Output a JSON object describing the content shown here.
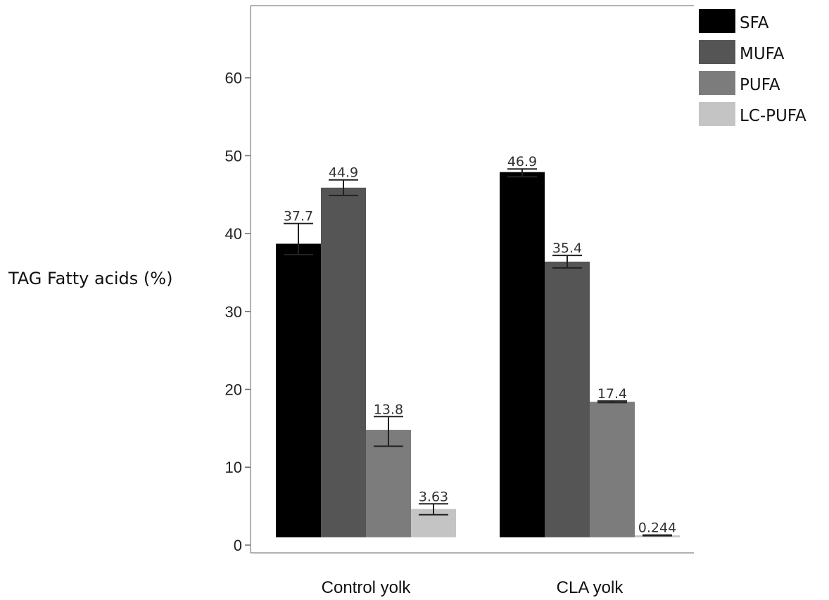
{
  "chart_data": {
    "type": "bar",
    "title": "",
    "xlabel": "",
    "ylabel": "TAG Fatty acids (%)",
    "categories": [
      "Control yolk",
      "CLA yolk"
    ],
    "series": [
      {
        "name": "SFA",
        "color": "#000000",
        "values": [
          37.7,
          46.9
        ],
        "labels": [
          "37.7",
          "46.9"
        ],
        "error": [
          [
            36.3,
            40.3
          ],
          [
            46.3,
            47.3
          ]
        ]
      },
      {
        "name": "MUFA",
        "color": "#555555",
        "values": [
          44.9,
          35.4
        ],
        "labels": [
          "44.9",
          "35.4"
        ],
        "error": [
          [
            43.9,
            45.9
          ],
          [
            34.6,
            36.2
          ]
        ]
      },
      {
        "name": "PUFA",
        "color": "#7c7c7c",
        "values": [
          13.8,
          17.4
        ],
        "labels": [
          "13.8",
          "17.4"
        ],
        "error": [
          [
            11.7,
            15.5
          ],
          [
            17.3,
            17.5
          ]
        ]
      },
      {
        "name": "LC-PUFA",
        "color": "#c4c4c4",
        "values": [
          3.63,
          0.244
        ],
        "labels": [
          "3.63",
          "0.244"
        ],
        "error": [
          [
            2.9,
            4.3
          ],
          [
            0.2,
            0.29
          ]
        ]
      }
    ],
    "yticks": [
      0,
      10,
      20,
      30,
      40,
      50,
      60
    ],
    "ylim": [
      -1,
      70
    ],
    "bar_baseline": 1,
    "grid": false,
    "legend_position": "top-right"
  }
}
